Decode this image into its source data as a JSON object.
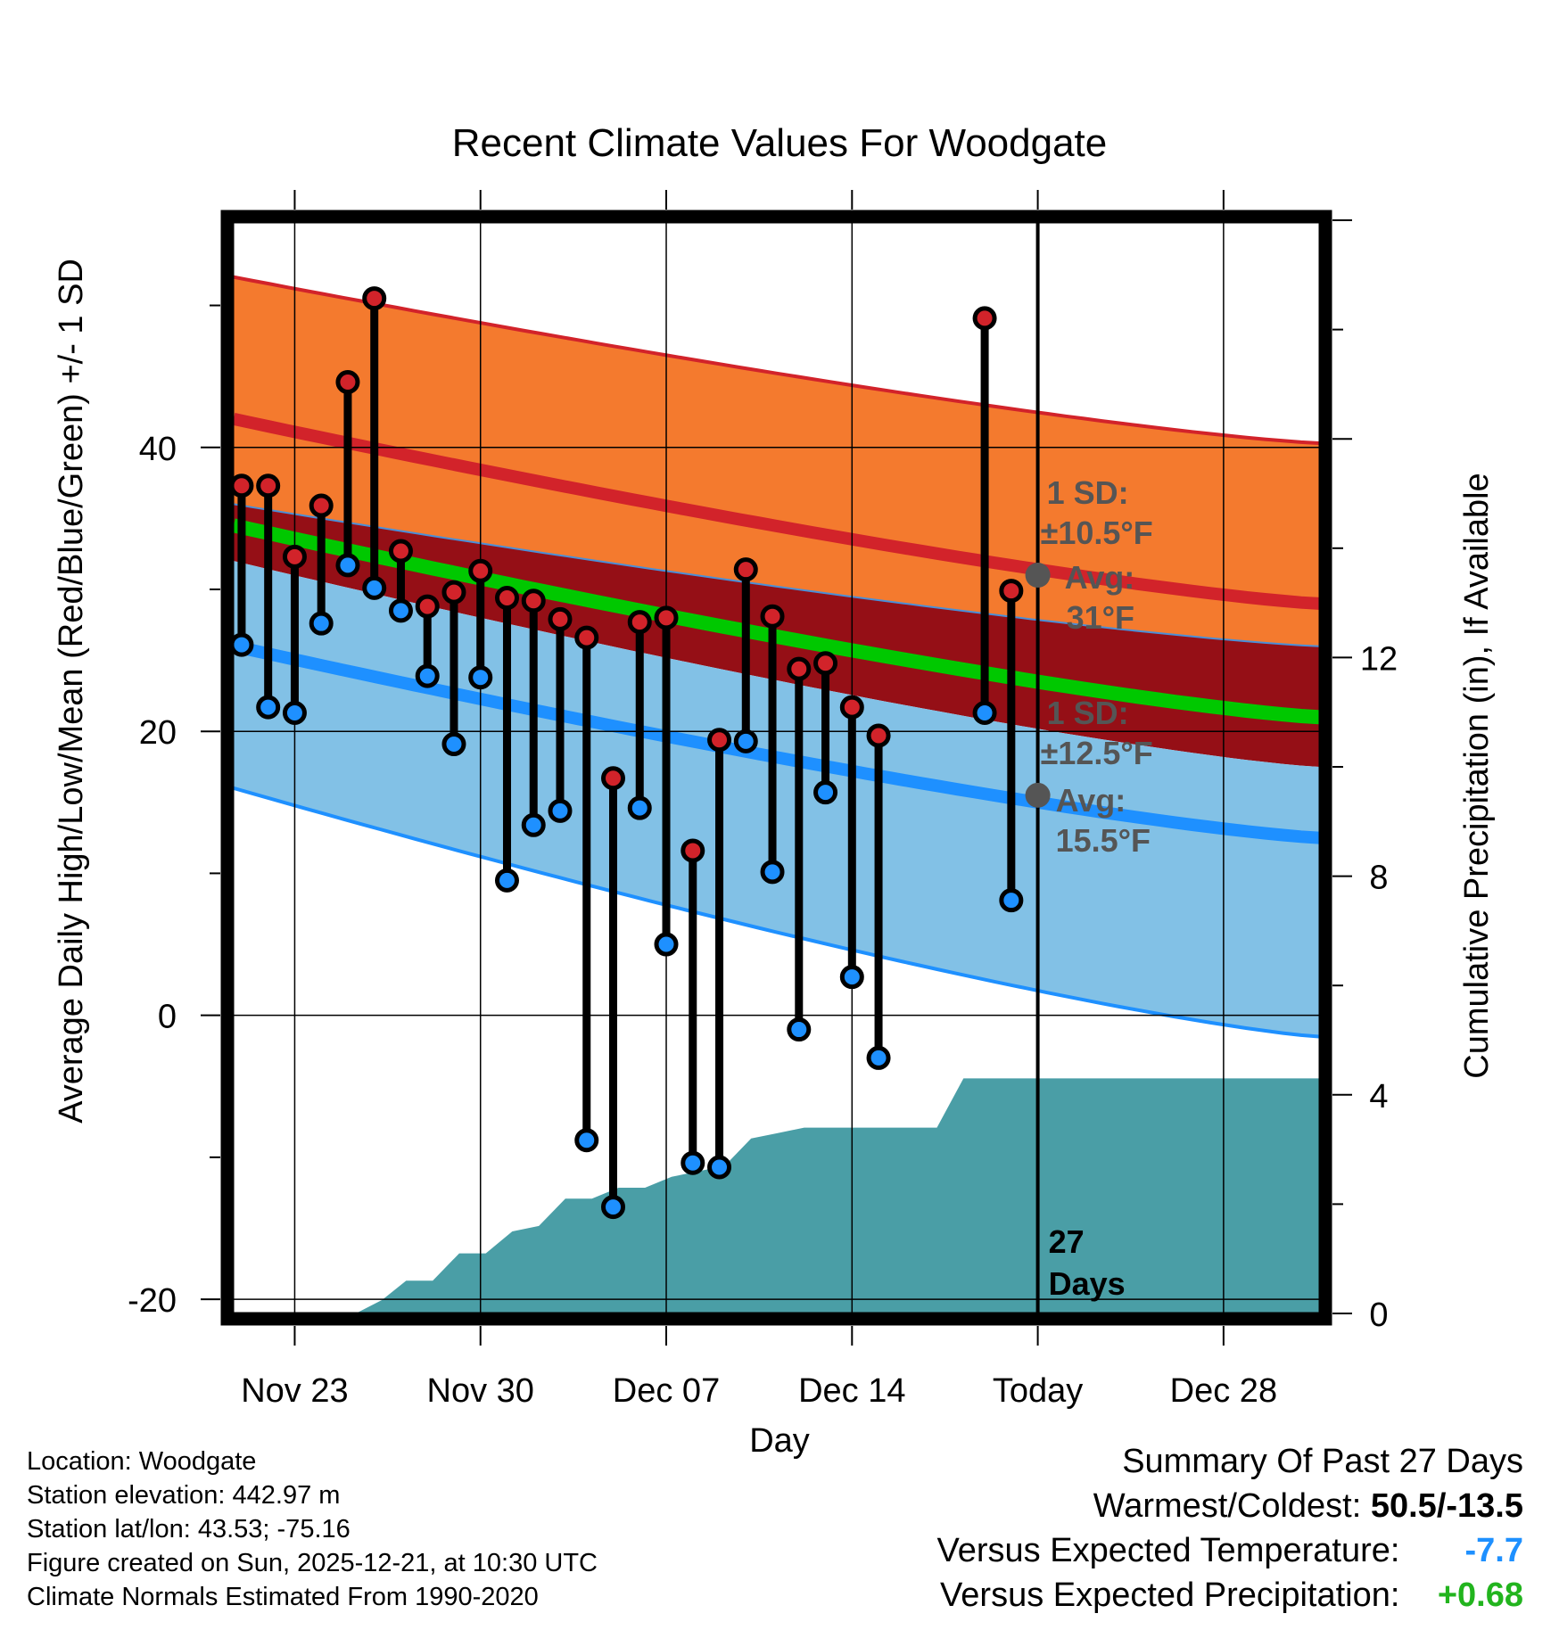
{
  "chart_data": {
    "type": "range-bar-with-bands",
    "title": "Recent Climate Values For Woodgate",
    "xlabel": "Day",
    "ylabel": "Average Daily High/Low/Mean (Red/Blue/Green) +/- 1 SD",
    "y2label": "Cumulative Precipitation (in), If Available",
    "ylim": [
      -21,
      56
    ],
    "y2lim": [
      0,
      20
    ],
    "yticks": [
      -20,
      0,
      20,
      40
    ],
    "y2ticks": [
      0,
      4,
      8,
      12
    ],
    "x_range_days": [
      -30.3,
      10.6
    ],
    "x_ticks": [
      {
        "day": -28,
        "label": "Nov 23"
      },
      {
        "day": -21,
        "label": "Nov 30"
      },
      {
        "day": -14,
        "label": "Dec 07"
      },
      {
        "day": -7,
        "label": "Dec 14"
      },
      {
        "day": 0,
        "label": "Today"
      },
      {
        "day": 7,
        "label": "Dec 28"
      }
    ],
    "today_marker": {
      "day": 0,
      "label_line1": "27",
      "label_line2": "Days"
    },
    "normals": {
      "high_mean": {
        "start": 42.0,
        "end": 29.0
      },
      "high_upper": {
        "start": 52.0,
        "end": 40.3
      },
      "mean": {
        "start": 34.5,
        "end": 21.0
      },
      "low_mean": {
        "start": 26.0,
        "end": 12.5
      },
      "low_lower": {
        "start": 16.0,
        "end": -1.5
      },
      "band_bottom_dark": {
        "start": 32.0,
        "end": 17.5
      },
      "band_top_dark": {
        "start": 36.0,
        "end": 26.0
      }
    },
    "daily": {
      "days": [
        -30,
        -29,
        -28,
        -27,
        -26,
        -25,
        -24,
        -23,
        -22,
        -21,
        -20,
        -19,
        -18,
        -17,
        -16,
        -15,
        -14,
        -13,
        -12,
        -11,
        -10,
        -9,
        -8,
        -7,
        -6,
        -2,
        -1
      ],
      "highs": [
        37.3,
        37.3,
        32.3,
        35.9,
        44.6,
        50.5,
        32.7,
        28.8,
        29.8,
        31.3,
        29.4,
        29.2,
        27.9,
        26.6,
        16.7,
        27.7,
        28.0,
        11.6,
        19.4,
        31.4,
        28.1,
        24.4,
        24.8,
        21.7,
        19.7,
        49.1,
        29.9
      ],
      "lows": [
        26.1,
        21.7,
        21.3,
        27.6,
        31.7,
        30.1,
        28.5,
        23.9,
        19.1,
        23.8,
        9.5,
        13.4,
        14.4,
        -8.8,
        -13.5,
        14.6,
        5.0,
        -10.4,
        -10.7,
        19.3,
        10.1,
        -1.0,
        15.7,
        2.7,
        -3.0,
        21.3,
        8.1
      ]
    },
    "precip_cumulative": {
      "days": [
        -30.3,
        -25.7,
        -24.7,
        -23.8,
        -22.8,
        -21.8,
        -20.8,
        -19.8,
        -18.8,
        -17.8,
        -16.8,
        -15.8,
        -14.8,
        -13.8,
        -12.8,
        -11.8,
        -10.8,
        -9.8,
        -8.8,
        -7.8,
        -6.8,
        -5.8,
        -4.8,
        -3.8,
        -2.8,
        10.6
      ],
      "values": [
        0,
        0,
        0.25,
        0.6,
        0.6,
        1.1,
        1.1,
        1.5,
        1.6,
        2.1,
        2.1,
        2.3,
        2.3,
        2.5,
        2.6,
        2.7,
        3.2,
        3.3,
        3.4,
        3.4,
        3.4,
        3.4,
        3.4,
        3.4,
        4.3,
        4.3
      ]
    },
    "annotations": {
      "high": {
        "sd_label": "1 SD:",
        "sd_value": "±10.5°F",
        "avg_label": "Avg:",
        "avg_value": "31°F",
        "avg": 31
      },
      "low": {
        "sd_label": "1 SD:",
        "sd_value": "±12.5°F",
        "avg_label": "Avg:",
        "avg_value": "15.5°F",
        "avg": 15.5
      }
    },
    "colors": {
      "high_band": "#f47a2e",
      "high_line": "#d2232a",
      "dark_band": "#950f16",
      "mean_line": "#00c800",
      "low_band": "#82c1e6",
      "low_line": "#1e90ff",
      "precip": "#4a9ea6",
      "high_dot": "#d2232a",
      "low_dot": "#1e90ff"
    }
  },
  "info": {
    "location": "Location: Woodgate",
    "elevation": "Station elevation: 442.97 m",
    "latlon": "Station lat/lon: 43.53; -75.16",
    "created": "Figure created on Sun, 2025-12-21, at 10:30 UTC",
    "normals": "Climate Normals Estimated From 1990-2020"
  },
  "summary": {
    "heading": "Summary Of Past 27 Days",
    "warm_cold_label": "Warmest/Coldest:",
    "warm_cold_value": "50.5/-13.5",
    "temp_label": "Versus Expected Temperature:",
    "temp_value": "-7.7",
    "temp_color": "#1e90ff",
    "precip_label": "Versus Expected Precipitation:",
    "precip_value": "+0.68",
    "precip_color": "#22b41e"
  }
}
